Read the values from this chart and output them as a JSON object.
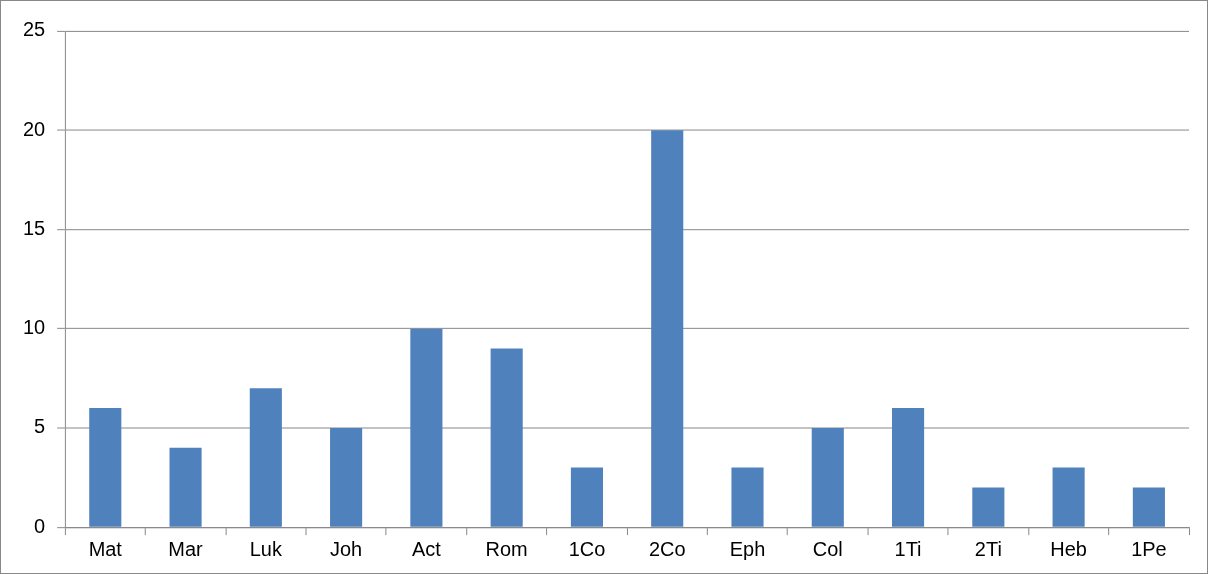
{
  "chart_data": {
    "type": "bar",
    "categories": [
      "Mat",
      "Mar",
      "Luk",
      "Joh",
      "Act",
      "Rom",
      "1Co",
      "2Co",
      "Eph",
      "Col",
      "1Ti",
      "2Ti",
      "Heb",
      "1Pe"
    ],
    "values": [
      6,
      4,
      7,
      5,
      10,
      9,
      3,
      20,
      3,
      5,
      6,
      2,
      3,
      2
    ],
    "color": "#4f81bd",
    "ylim": [
      0,
      25
    ],
    "yticks": [
      0,
      5,
      10,
      15,
      20,
      25
    ],
    "grid": "y",
    "legend": false
  }
}
